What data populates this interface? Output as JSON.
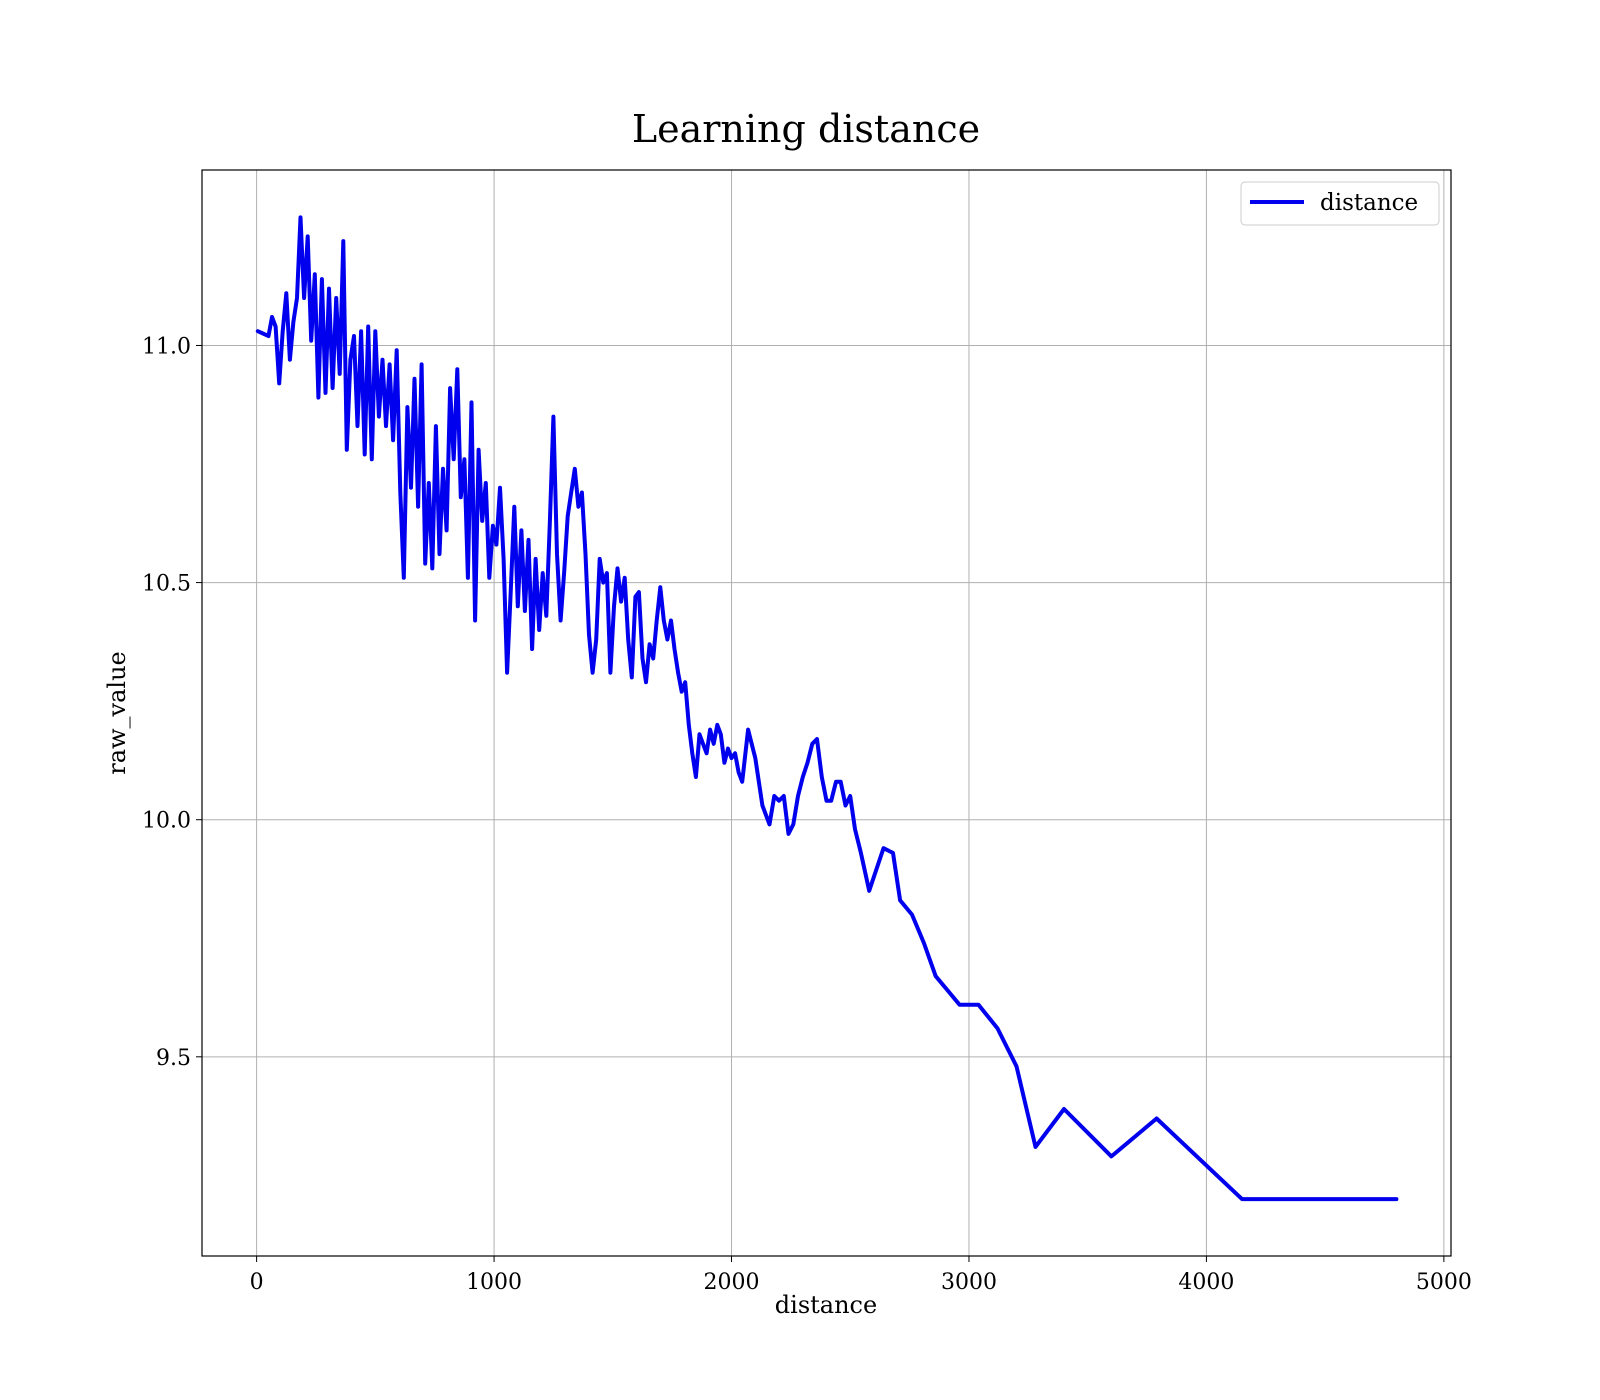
{
  "chart_data": {
    "type": "line",
    "title": "Learning distance",
    "xlabel": "distance",
    "ylabel": "raw_value",
    "xlim": [
      -230,
      5030
    ],
    "ylim": [
      9.08,
      11.37
    ],
    "xticks": [
      0,
      1000,
      2000,
      3000,
      4000,
      5000
    ],
    "xtick_labels": [
      "0",
      "1000",
      "2000",
      "3000",
      "4000",
      "5000"
    ],
    "yticks": [
      9.5,
      10.0,
      10.5,
      11.0
    ],
    "ytick_labels": [
      "9.5",
      "10.0",
      "10.5",
      "11.0"
    ],
    "grid": true,
    "legend_position": "top-right",
    "series": [
      {
        "name": "distance",
        "color": "#0000ee",
        "x": [
          5,
          50,
          65,
          80,
          95,
          110,
          125,
          140,
          155,
          170,
          185,
          200,
          215,
          230,
          245,
          260,
          275,
          290,
          305,
          320,
          335,
          350,
          365,
          380,
          395,
          410,
          425,
          440,
          455,
          470,
          485,
          500,
          515,
          530,
          545,
          560,
          575,
          590,
          605,
          620,
          635,
          650,
          665,
          680,
          695,
          710,
          725,
          740,
          755,
          770,
          785,
          800,
          815,
          830,
          845,
          860,
          875,
          890,
          905,
          920,
          935,
          950,
          965,
          980,
          995,
          1010,
          1025,
          1040,
          1055,
          1070,
          1085,
          1100,
          1115,
          1130,
          1145,
          1160,
          1175,
          1190,
          1205,
          1220,
          1235,
          1250,
          1265,
          1280,
          1295,
          1310,
          1325,
          1340,
          1355,
          1370,
          1385,
          1400,
          1415,
          1430,
          1445,
          1460,
          1475,
          1490,
          1505,
          1520,
          1535,
          1550,
          1565,
          1580,
          1595,
          1610,
          1625,
          1640,
          1655,
          1670,
          1685,
          1700,
          1715,
          1730,
          1745,
          1760,
          1775,
          1790,
          1805,
          1820,
          1835,
          1850,
          1865,
          1880,
          1895,
          1910,
          1925,
          1940,
          1955,
          1970,
          1985,
          2000,
          2015,
          2030,
          2045,
          2070,
          2100,
          2130,
          2160,
          2180,
          2200,
          2220,
          2240,
          2260,
          2280,
          2300,
          2320,
          2340,
          2360,
          2380,
          2400,
          2420,
          2440,
          2460,
          2480,
          2500,
          2520,
          2545,
          2580,
          2640,
          2680,
          2710,
          2760,
          2810,
          2860,
          2910,
          2960,
          3040,
          3120,
          3200,
          3280,
          3400,
          3600,
          3790,
          4150,
          4800
        ],
        "values": [
          11.03,
          11.02,
          11.06,
          11.04,
          10.92,
          11.03,
          11.11,
          10.97,
          11.05,
          11.1,
          11.27,
          11.1,
          11.23,
          11.01,
          11.15,
          10.89,
          11.14,
          10.9,
          11.12,
          10.91,
          11.1,
          10.94,
          11.22,
          10.78,
          10.97,
          11.02,
          10.83,
          11.03,
          10.77,
          11.04,
          10.76,
          11.03,
          10.85,
          10.97,
          10.83,
          10.96,
          10.8,
          10.99,
          10.69,
          10.51,
          10.87,
          10.7,
          10.93,
          10.66,
          10.96,
          10.54,
          10.71,
          10.53,
          10.83,
          10.56,
          10.74,
          10.61,
          10.91,
          10.76,
          10.95,
          10.68,
          10.76,
          10.51,
          10.88,
          10.42,
          10.78,
          10.63,
          10.71,
          10.51,
          10.62,
          10.58,
          10.7,
          10.55,
          10.31,
          10.48,
          10.66,
          10.45,
          10.61,
          10.44,
          10.59,
          10.36,
          10.55,
          10.4,
          10.52,
          10.43,
          10.63,
          10.85,
          10.56,
          10.42,
          10.52,
          10.64,
          10.69,
          10.74,
          10.66,
          10.69,
          10.56,
          10.39,
          10.31,
          10.38,
          10.55,
          10.5,
          10.52,
          10.31,
          10.45,
          10.53,
          10.46,
          10.51,
          10.38,
          10.3,
          10.47,
          10.48,
          10.34,
          10.29,
          10.37,
          10.34,
          10.42,
          10.49,
          10.42,
          10.38,
          10.42,
          10.36,
          10.31,
          10.27,
          10.29,
          10.2,
          10.14,
          10.09,
          10.18,
          10.16,
          10.14,
          10.19,
          10.16,
          10.2,
          10.18,
          10.12,
          10.15,
          10.13,
          10.14,
          10.1,
          10.08,
          10.19,
          10.13,
          10.03,
          9.99,
          10.05,
          10.04,
          10.05,
          9.97,
          9.99,
          10.05,
          10.09,
          10.12,
          10.16,
          10.17,
          10.09,
          10.04,
          10.04,
          10.08,
          10.08,
          10.03,
          10.05,
          9.98,
          9.93,
          9.85,
          9.94,
          9.93,
          9.83,
          9.8,
          9.74,
          9.67,
          9.64,
          9.61,
          9.61,
          9.56,
          9.48,
          9.31,
          9.39,
          9.29,
          9.37,
          9.2,
          9.2
        ]
      }
    ]
  }
}
